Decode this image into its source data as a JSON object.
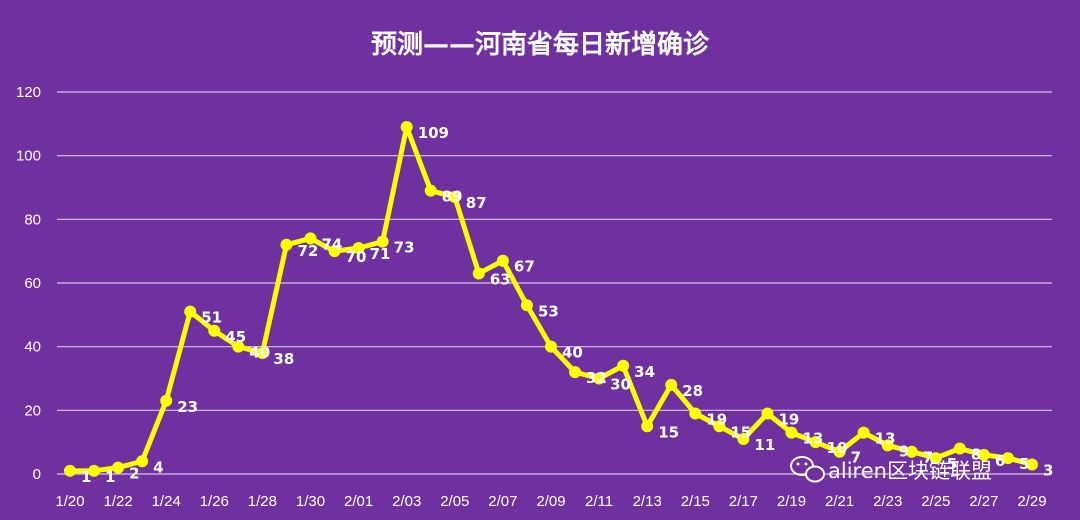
{
  "chart_data": {
    "type": "line",
    "title": "预测——河南省每日新增确诊",
    "xlabel": "",
    "ylabel": "",
    "ylim": [
      0,
      120
    ],
    "yticks": [
      0,
      20,
      40,
      60,
      80,
      100,
      120
    ],
    "grid": true,
    "legend": "none",
    "x": [
      "1/20",
      "1/21",
      "1/22",
      "1/23",
      "1/24",
      "1/25",
      "1/26",
      "1/27",
      "1/28",
      "1/29",
      "1/30",
      "1/31",
      "2/01",
      "2/02",
      "2/03",
      "2/04",
      "2/05",
      "2/06",
      "2/07",
      "2/08",
      "2/09",
      "2/10",
      "2/11",
      "2/12",
      "2/13",
      "2/14",
      "2/15",
      "2/16",
      "2/17",
      "2/18",
      "2/19",
      "2/20",
      "2/21",
      "2/22",
      "2/23",
      "2/24",
      "2/25",
      "2/26",
      "2/27",
      "2/28",
      "2/29"
    ],
    "x_tick_labels": [
      "1/20",
      "1/22",
      "1/24",
      "1/26",
      "1/28",
      "1/30",
      "2/01",
      "2/03",
      "2/05",
      "2/07",
      "2/09",
      "2/11",
      "2/13",
      "2/15",
      "2/17",
      "2/19",
      "2/21",
      "2/23",
      "2/25",
      "2/27",
      "2/29"
    ],
    "series": [
      {
        "values": [
          1,
          1,
          2,
          4,
          23,
          51,
          45,
          40,
          38,
          72,
          74,
          70,
          71,
          73,
          109,
          89,
          87,
          63,
          67,
          53,
          40,
          32,
          30,
          34,
          15,
          28,
          19,
          15,
          11,
          19,
          13,
          10,
          7,
          13,
          9,
          7,
          5,
          8,
          6,
          5,
          3
        ],
        "data_labels": [
          "1",
          "1",
          "2",
          "4",
          "23",
          "51",
          "45",
          "40",
          "38",
          "72",
          "74",
          "70",
          "71",
          "73",
          "109",
          "89",
          "87",
          "63",
          "67",
          "53",
          "40",
          "32",
          "30",
          "34",
          "15",
          "28",
          "19",
          "15",
          "11",
          "19",
          "13",
          "10",
          "7",
          "13",
          "9",
          "7",
          "5",
          "8",
          "6",
          "5",
          "3"
        ],
        "color": "#ffff00"
      }
    ]
  },
  "colors": {
    "background": "#7030a0",
    "line": "#ffff00",
    "text": "#ffffff",
    "grid": "#d6c4e6"
  },
  "watermark": {
    "icon": "wechat-icon",
    "text": "aliren区块链联盟"
  }
}
